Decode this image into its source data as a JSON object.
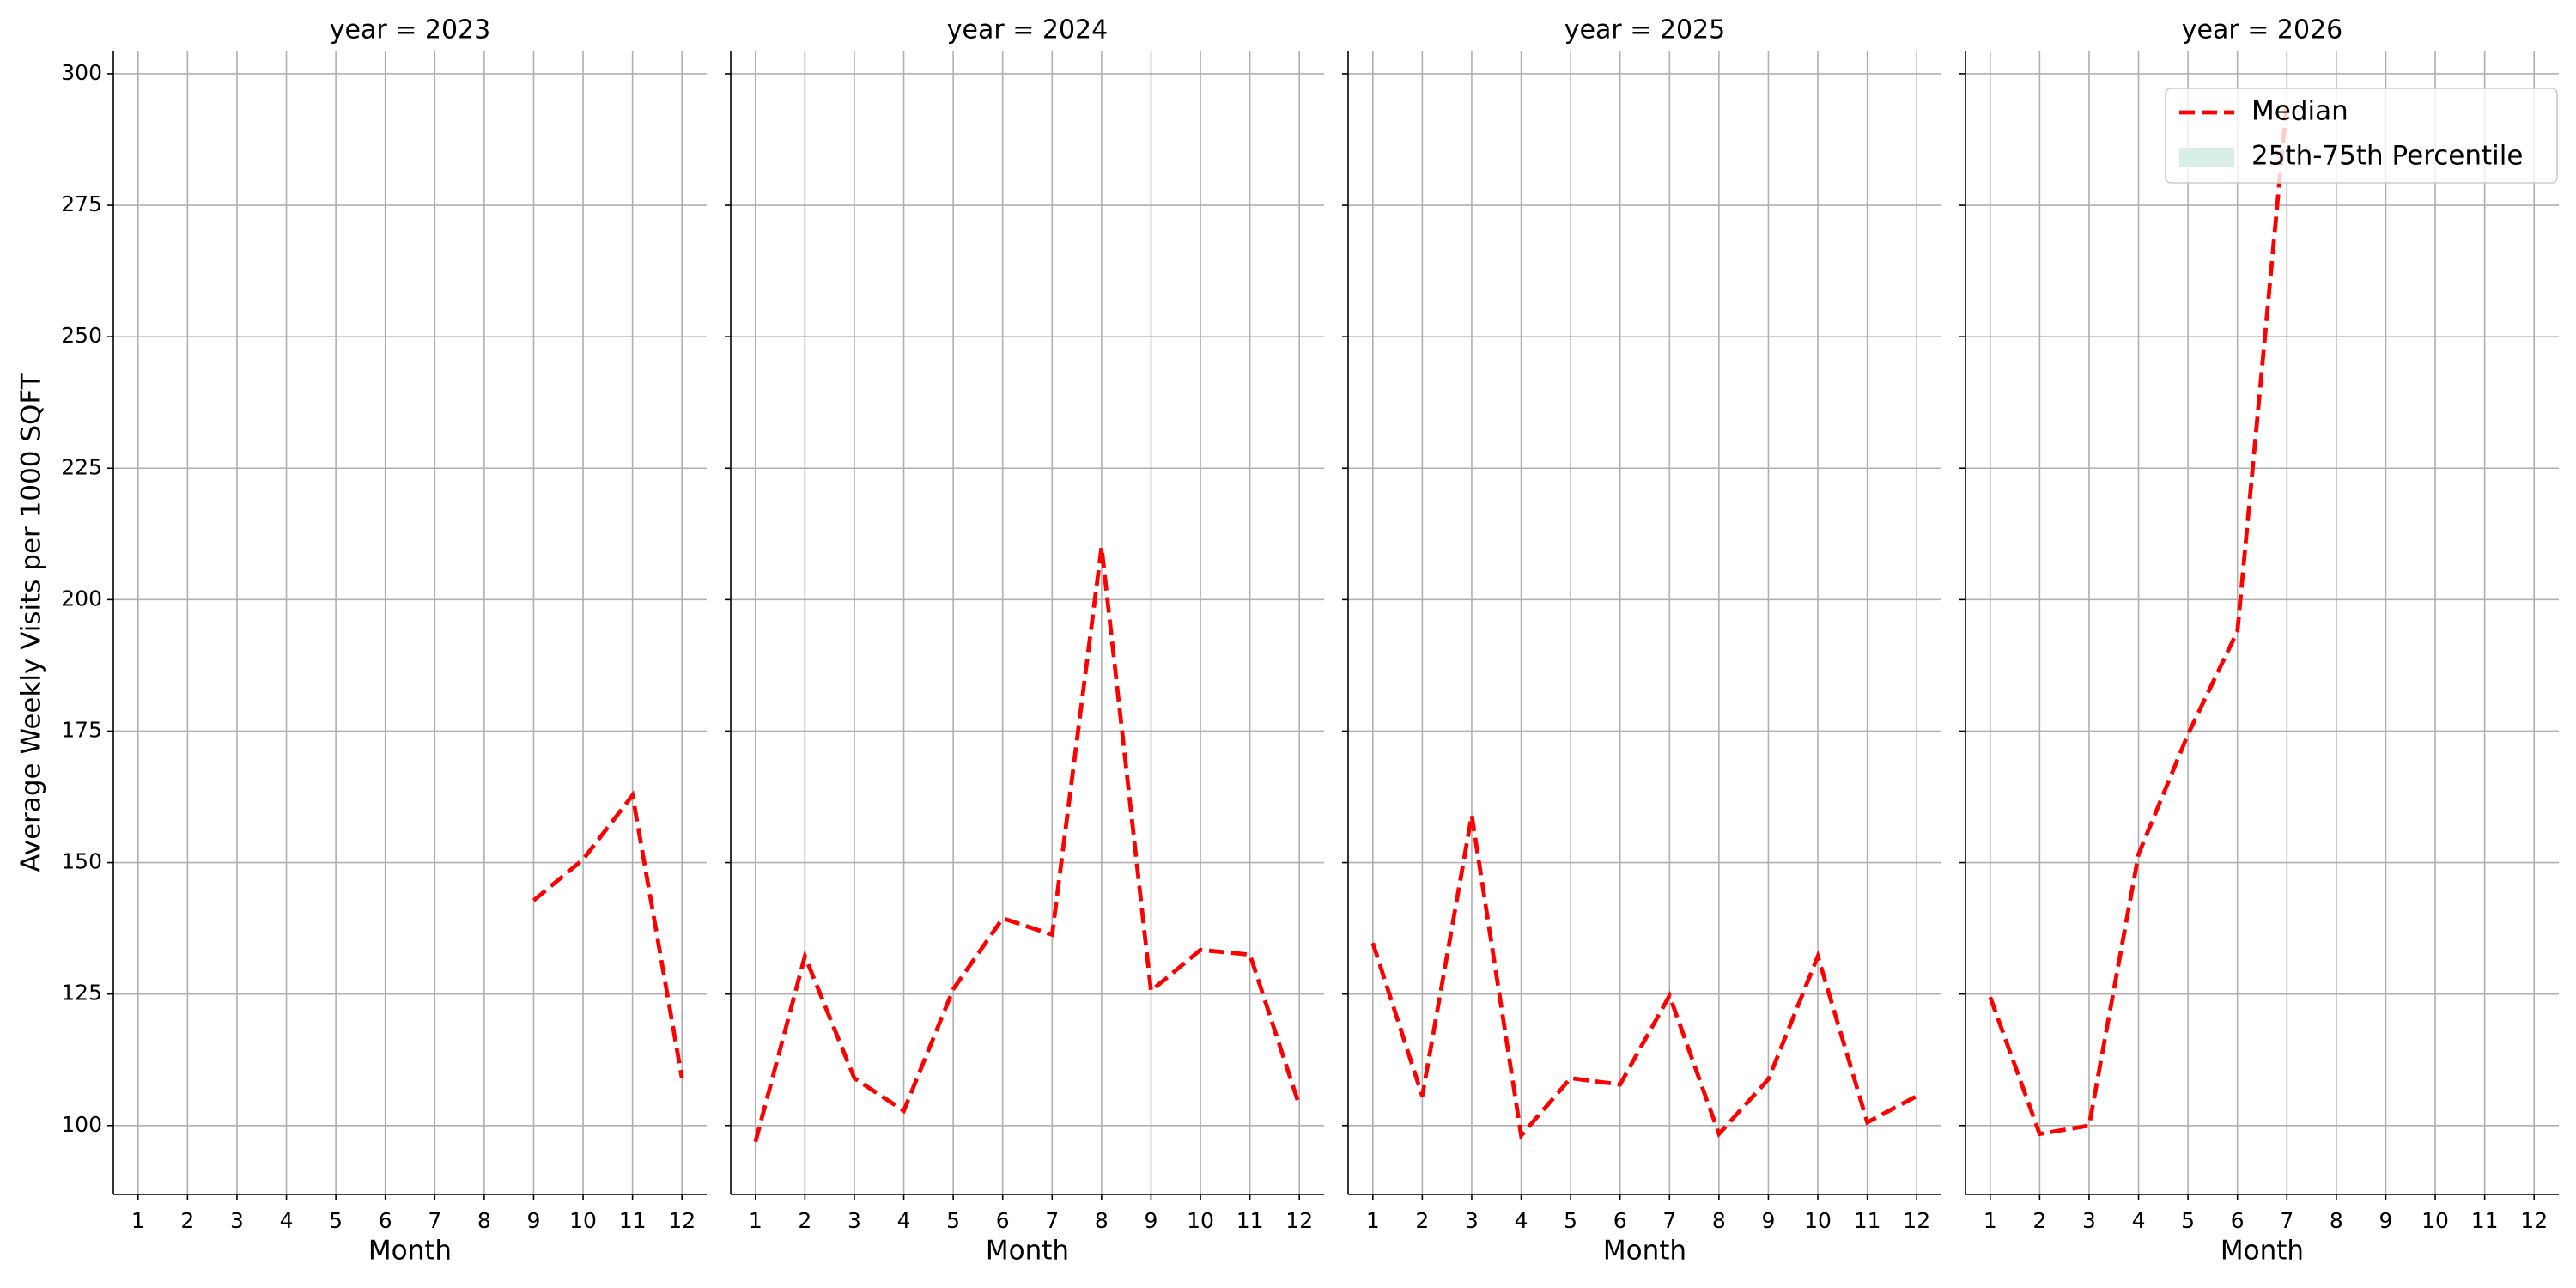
{
  "chart_data": [
    {
      "type": "line",
      "title": "year = 2023",
      "xlabel": "Month",
      "ylabel": "Average Weekly Visits per 1000 SQFT",
      "x": [
        9,
        10,
        11,
        12
      ],
      "series": [
        {
          "name": "Median",
          "color": "#ff0000",
          "dashed": true,
          "values": [
            142.8,
            150.6,
            162.8,
            109
          ]
        }
      ],
      "xlim": [
        0.5,
        12.5
      ],
      "xticks": [
        1,
        2,
        3,
        4,
        5,
        6,
        7,
        8,
        9,
        10,
        11,
        12
      ],
      "ylim": [
        86.9,
        304.4
      ],
      "yticks": [
        100,
        125,
        150,
        175,
        200,
        225,
        250,
        275,
        300
      ],
      "grid": true
    },
    {
      "type": "line",
      "title": "year = 2024",
      "xlabel": "Month",
      "x": [
        1,
        2,
        3,
        4,
        5,
        6,
        7,
        8,
        9,
        10,
        11,
        12
      ],
      "series": [
        {
          "name": "Median",
          "color": "#ff0000",
          "dashed": true,
          "values": [
            96.9,
            132.2,
            109,
            102.8,
            125.9,
            139.4,
            136.3,
            210,
            125.6,
            133.4,
            132.5,
            103.8
          ]
        }
      ],
      "xlim": [
        0.5,
        12.5
      ],
      "xticks": [
        1,
        2,
        3,
        4,
        5,
        6,
        7,
        8,
        9,
        10,
        11,
        12
      ],
      "ylim": [
        86.9,
        304.4
      ],
      "yticks": [
        100,
        125,
        150,
        175,
        200,
        225,
        250,
        275,
        300
      ],
      "grid": true
    },
    {
      "type": "line",
      "title": "year = 2025",
      "xlabel": "Month",
      "x": [
        1,
        2,
        3,
        4,
        5,
        6,
        7,
        8,
        9,
        10,
        11,
        12
      ],
      "series": [
        {
          "name": "Median",
          "color": "#ff0000",
          "dashed": true,
          "values": [
            134.7,
            105.6,
            159,
            98.1,
            109,
            107.8,
            124.7,
            98.4,
            108.8,
            132.2,
            100.6,
            105.6
          ]
        }
      ],
      "xlim": [
        0.5,
        12.5
      ],
      "xticks": [
        1,
        2,
        3,
        4,
        5,
        6,
        7,
        8,
        9,
        10,
        11,
        12
      ],
      "ylim": [
        86.9,
        304.4
      ],
      "yticks": [
        100,
        125,
        150,
        175,
        200,
        225,
        250,
        275,
        300
      ],
      "grid": true
    },
    {
      "type": "line",
      "title": "year = 2026",
      "xlabel": "Month",
      "x": [
        1,
        2,
        3,
        4,
        5,
        6,
        7
      ],
      "series": [
        {
          "name": "Median",
          "color": "#ff0000",
          "dashed": true,
          "values": [
            124.4,
            98.4,
            100,
            151.6,
            174.4,
            194,
            294.7
          ]
        },
        {
          "name": "25th-75th Percentile",
          "color": "#d8eee6"
        }
      ],
      "legend": "upper right",
      "xlim": [
        0.5,
        12.5
      ],
      "xticks": [
        1,
        2,
        3,
        4,
        5,
        6,
        7,
        8,
        9,
        10,
        11,
        12
      ],
      "ylim": [
        86.9,
        304.4
      ],
      "yticks": [
        100,
        125,
        150,
        175,
        200,
        225,
        250,
        275,
        300
      ],
      "grid": true
    }
  ]
}
